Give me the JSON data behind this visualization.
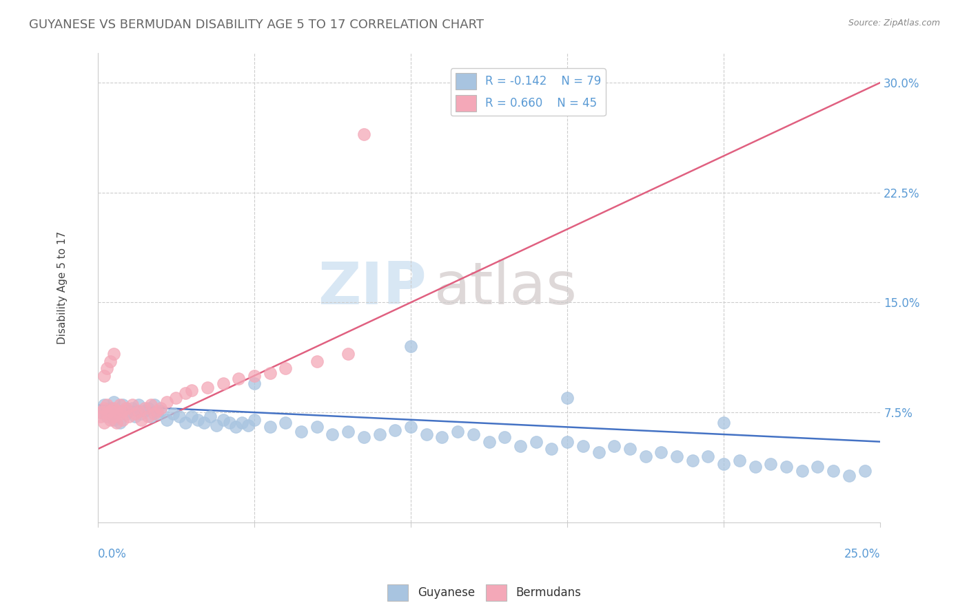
{
  "title": "GUYANESE VS BERMUDAN DISABILITY AGE 5 TO 17 CORRELATION CHART",
  "source": "Source: ZipAtlas.com",
  "ylabel": "Disability Age 5 to 17",
  "xlim": [
    0.0,
    0.25
  ],
  "ylim": [
    0.0,
    0.32
  ],
  "yticks": [
    0.075,
    0.15,
    0.225,
    0.3
  ],
  "ytick_labels": [
    "7.5%",
    "15.0%",
    "22.5%",
    "30.0%"
  ],
  "legend_r1": "R = -0.142",
  "legend_n1": "N = 79",
  "legend_r2": "R = 0.660",
  "legend_n2": "N = 45",
  "label1": "Guyanese",
  "label2": "Bermudans",
  "color1": "#a8c4e0",
  "color2": "#f4a8b8",
  "trendline1_color": "#4472c4",
  "trendline2_color": "#e06080",
  "axis_label_color": "#5b9bd5",
  "watermark_zip": "ZIP",
  "watermark_atlas": "atlas",
  "blue_scatter_x": [
    0.001,
    0.002,
    0.003,
    0.004,
    0.005,
    0.005,
    0.006,
    0.007,
    0.008,
    0.009,
    0.01,
    0.011,
    0.012,
    0.013,
    0.014,
    0.015,
    0.016,
    0.017,
    0.018,
    0.019,
    0.02,
    0.022,
    0.024,
    0.026,
    0.028,
    0.03,
    0.032,
    0.034,
    0.036,
    0.038,
    0.04,
    0.042,
    0.044,
    0.046,
    0.048,
    0.05,
    0.055,
    0.06,
    0.065,
    0.07,
    0.075,
    0.08,
    0.085,
    0.09,
    0.095,
    0.1,
    0.105,
    0.11,
    0.115,
    0.12,
    0.125,
    0.13,
    0.135,
    0.14,
    0.145,
    0.15,
    0.155,
    0.16,
    0.165,
    0.17,
    0.175,
    0.18,
    0.185,
    0.19,
    0.195,
    0.2,
    0.205,
    0.21,
    0.215,
    0.22,
    0.225,
    0.23,
    0.235,
    0.24,
    0.245,
    0.05,
    0.1,
    0.15,
    0.2
  ],
  "blue_scatter_y": [
    0.075,
    0.08,
    0.072,
    0.078,
    0.082,
    0.07,
    0.075,
    0.068,
    0.08,
    0.074,
    0.076,
    0.078,
    0.072,
    0.08,
    0.074,
    0.076,
    0.078,
    0.072,
    0.08,
    0.074,
    0.076,
    0.07,
    0.074,
    0.072,
    0.068,
    0.072,
    0.07,
    0.068,
    0.072,
    0.066,
    0.07,
    0.068,
    0.065,
    0.068,
    0.066,
    0.07,
    0.065,
    0.068,
    0.062,
    0.065,
    0.06,
    0.062,
    0.058,
    0.06,
    0.063,
    0.065,
    0.06,
    0.058,
    0.062,
    0.06,
    0.055,
    0.058,
    0.052,
    0.055,
    0.05,
    0.055,
    0.052,
    0.048,
    0.052,
    0.05,
    0.045,
    0.048,
    0.045,
    0.042,
    0.045,
    0.04,
    0.042,
    0.038,
    0.04,
    0.038,
    0.035,
    0.038,
    0.035,
    0.032,
    0.035,
    0.095,
    0.12,
    0.085,
    0.068
  ],
  "pink_scatter_x": [
    0.001,
    0.001,
    0.002,
    0.002,
    0.003,
    0.003,
    0.004,
    0.004,
    0.005,
    0.005,
    0.006,
    0.006,
    0.007,
    0.007,
    0.008,
    0.008,
    0.009,
    0.01,
    0.011,
    0.012,
    0.013,
    0.014,
    0.015,
    0.016,
    0.017,
    0.018,
    0.019,
    0.02,
    0.022,
    0.025,
    0.028,
    0.03,
    0.035,
    0.04,
    0.045,
    0.05,
    0.055,
    0.06,
    0.07,
    0.08,
    0.002,
    0.003,
    0.004,
    0.005,
    0.085
  ],
  "pink_scatter_y": [
    0.075,
    0.072,
    0.078,
    0.068,
    0.08,
    0.074,
    0.076,
    0.07,
    0.078,
    0.072,
    0.076,
    0.068,
    0.08,
    0.074,
    0.076,
    0.07,
    0.078,
    0.072,
    0.08,
    0.074,
    0.076,
    0.07,
    0.078,
    0.072,
    0.08,
    0.074,
    0.076,
    0.078,
    0.082,
    0.085,
    0.088,
    0.09,
    0.092,
    0.095,
    0.098,
    0.1,
    0.102,
    0.105,
    0.11,
    0.115,
    0.1,
    0.105,
    0.11,
    0.115,
    0.265
  ],
  "trendline1_x": [
    0.0,
    0.25
  ],
  "trendline1_y": [
    0.08,
    0.055
  ],
  "trendline2_x": [
    0.0,
    0.25
  ],
  "trendline2_y": [
    0.05,
    0.3
  ]
}
